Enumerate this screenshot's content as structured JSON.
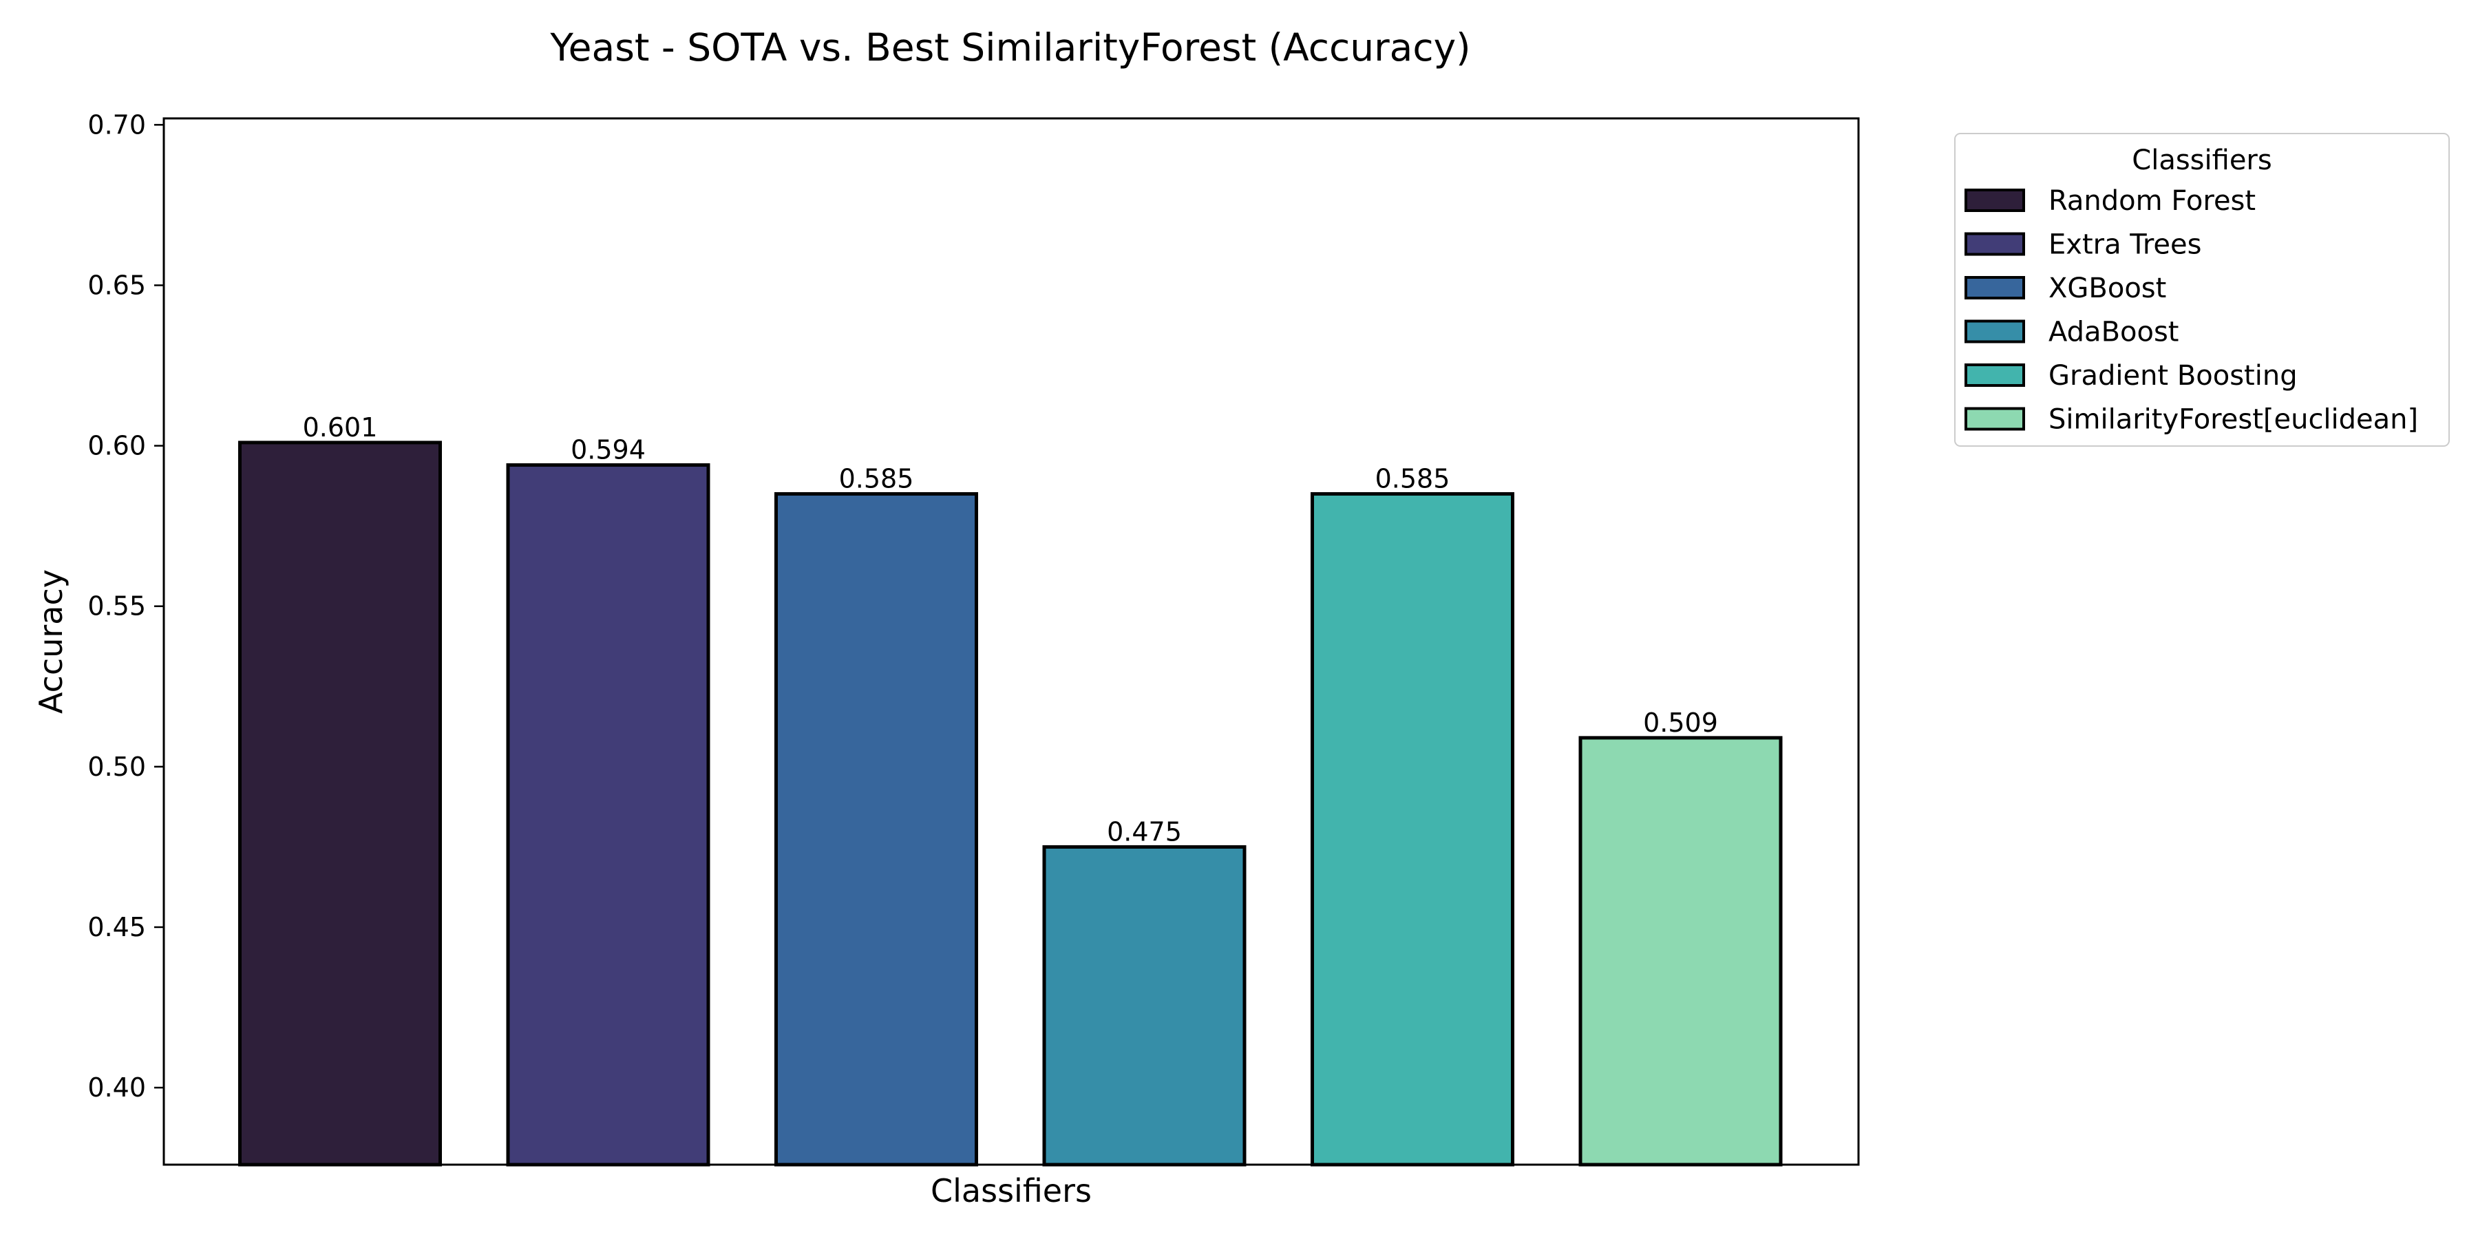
{
  "chart_data": {
    "type": "bar",
    "title": "Yeast - SOTA vs. Best SimilarityForest (Accuracy)",
    "xlabel": "Classifiers",
    "ylabel": "Accuracy",
    "ylim": [
      0.376,
      0.702
    ],
    "yticks": [
      0.4,
      0.45,
      0.5,
      0.55,
      0.6,
      0.65,
      0.7
    ],
    "grid": false,
    "legend": {
      "title": "Classifiers",
      "placement": "outside-top-right"
    },
    "categories": [
      "Random Forest",
      "Extra Trees",
      "XGBoost",
      "AdaBoost",
      "Gradient Boosting",
      "SimilarityForest[euclidean]"
    ],
    "values": [
      0.601,
      0.594,
      0.585,
      0.475,
      0.585,
      0.509
    ],
    "value_labels": [
      "0.601",
      "0.594",
      "0.585",
      "0.475",
      "0.585",
      "0.509"
    ],
    "colors": [
      "#2e1f3a",
      "#413d77",
      "#37669c",
      "#368ea8",
      "#42b4ad",
      "#8dd9b1"
    ],
    "edge_color": "#000000"
  }
}
